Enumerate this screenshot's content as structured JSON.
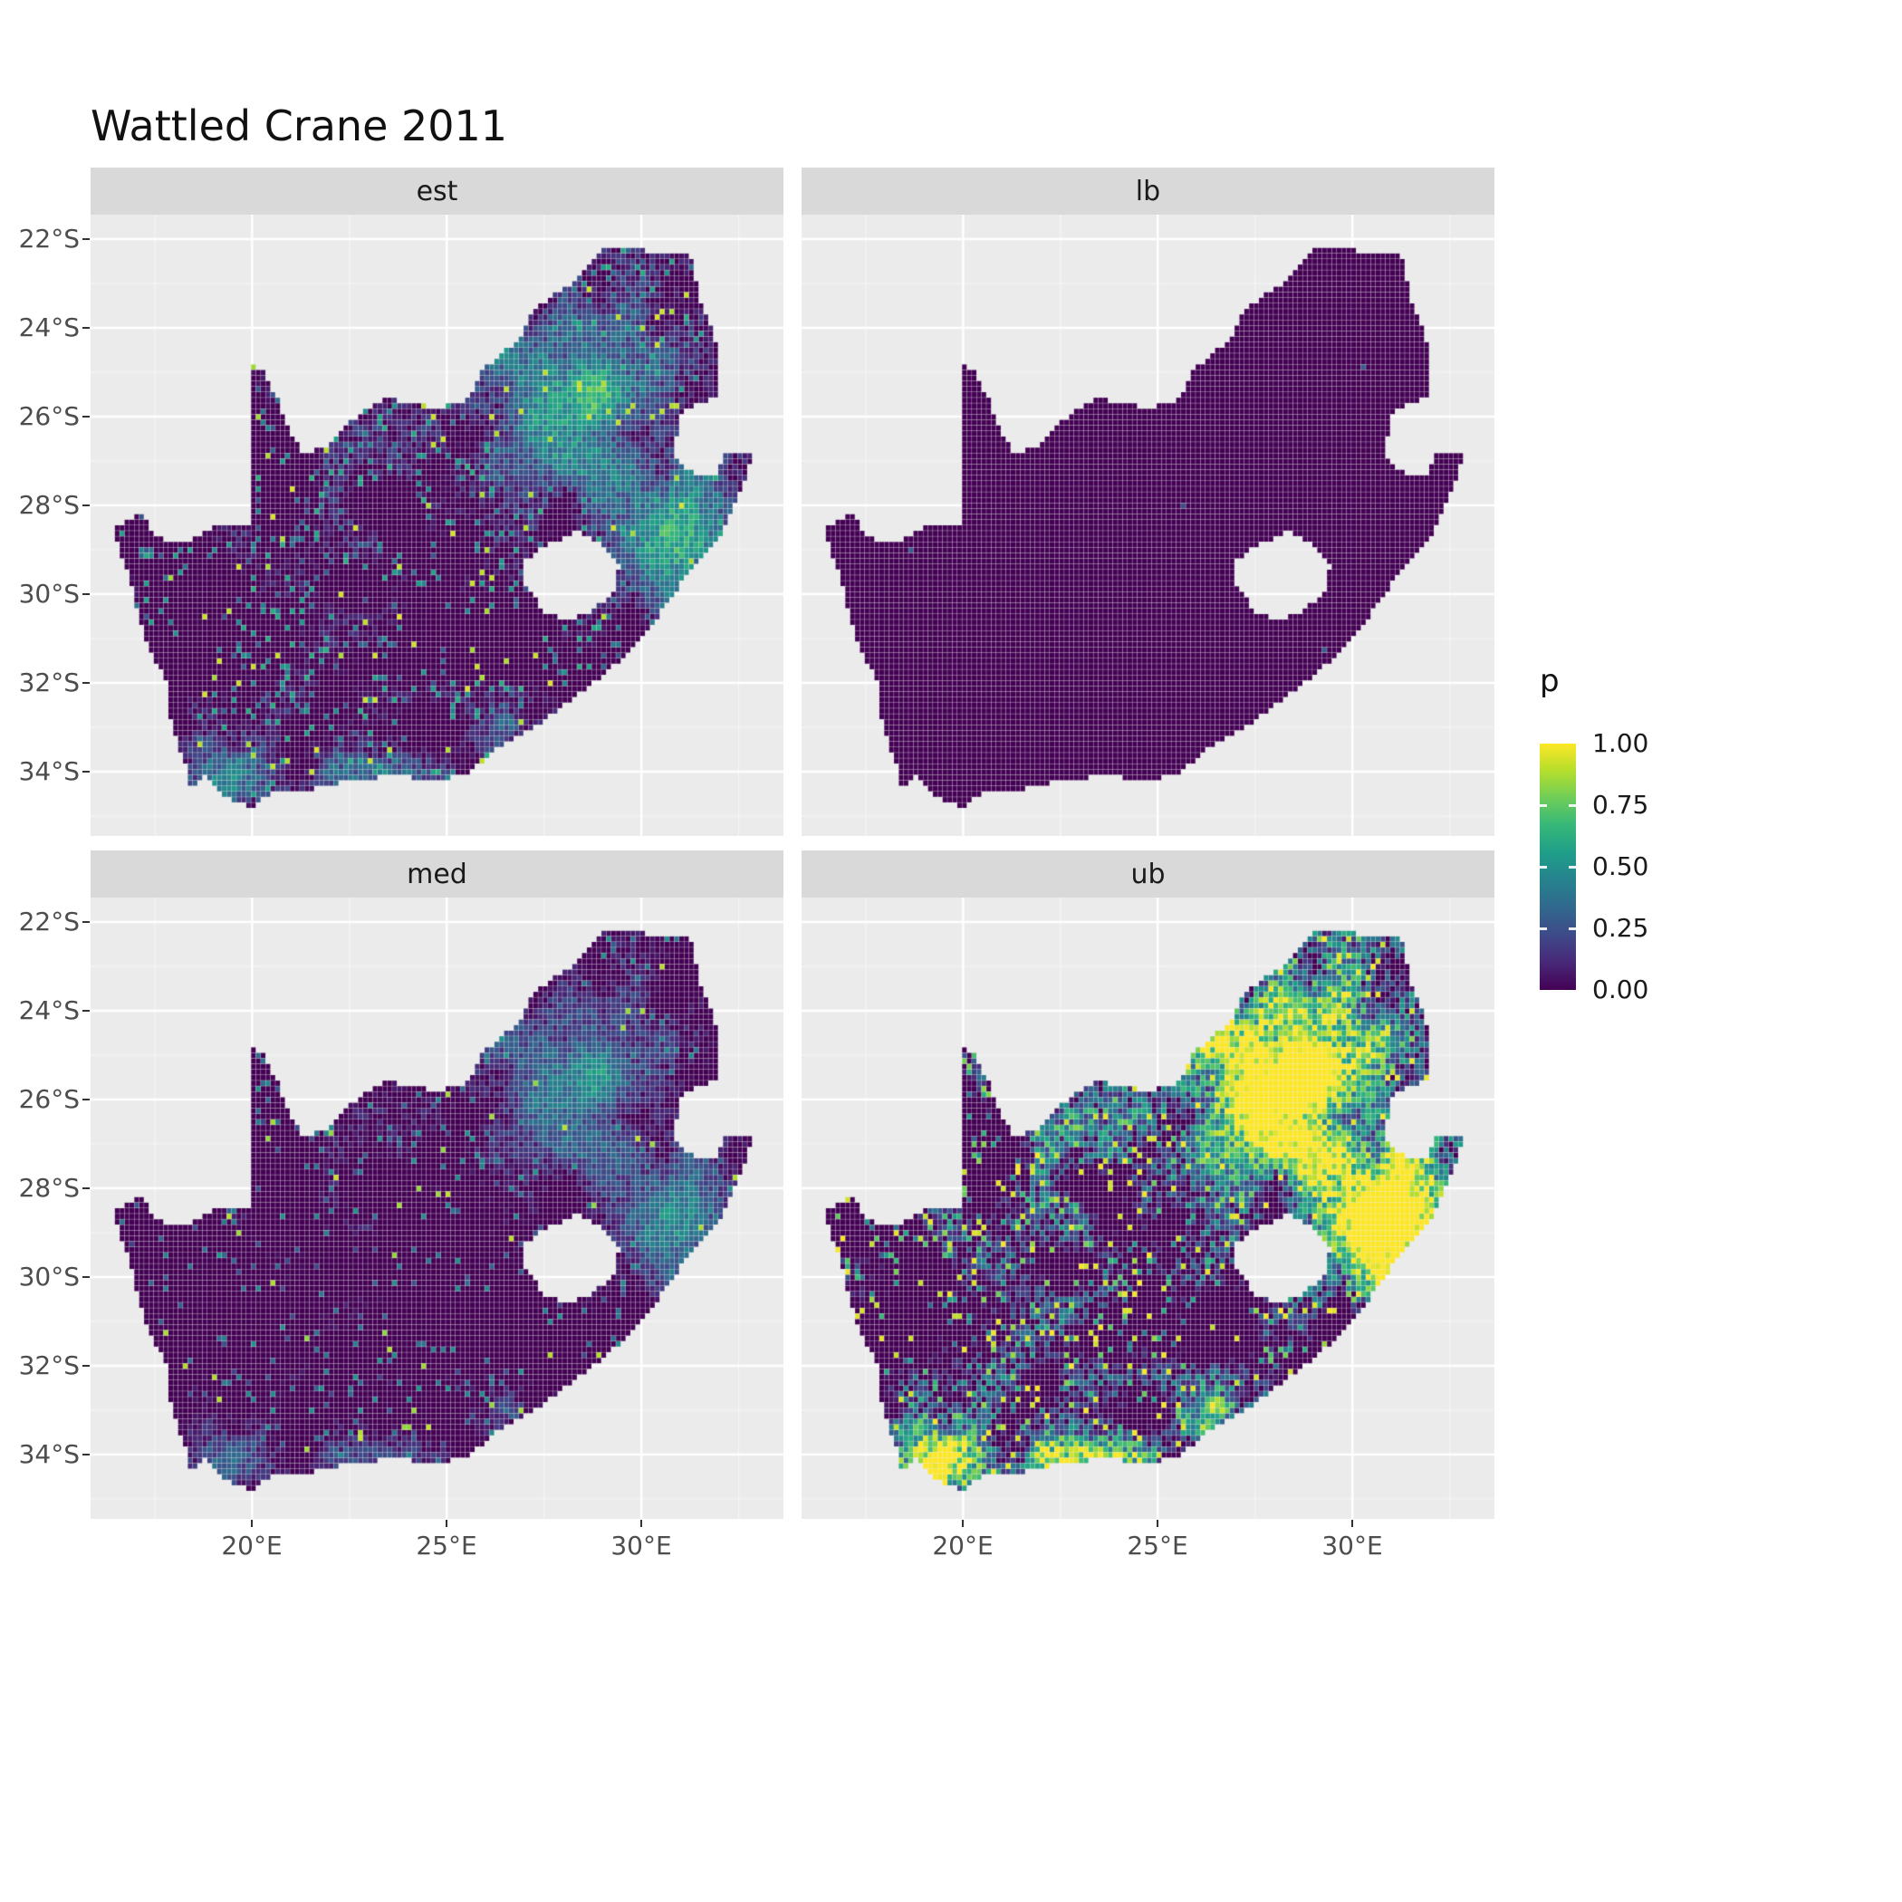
{
  "title": "Wattled Crane 2011",
  "legend": {
    "title": "p",
    "entries": [
      {
        "label": "1.00",
        "value": 1.0
      },
      {
        "label": "0.75",
        "value": 0.75
      },
      {
        "label": "0.50",
        "value": 0.5
      },
      {
        "label": "0.25",
        "value": 0.25
      },
      {
        "label": "0.00",
        "value": 0.0
      }
    ]
  },
  "axes": {
    "y_ticks": [
      {
        "label": "22°S",
        "lat": -22
      },
      {
        "label": "24°S",
        "lat": -24
      },
      {
        "label": "26°S",
        "lat": -26
      },
      {
        "label": "28°S",
        "lat": -28
      },
      {
        "label": "30°S",
        "lat": -30
      },
      {
        "label": "32°S",
        "lat": -32
      },
      {
        "label": "34°S",
        "lat": -34
      }
    ],
    "x_ticks": [
      {
        "label": "20°E",
        "lon": 20
      },
      {
        "label": "25°E",
        "lon": 25
      },
      {
        "label": "30°E",
        "lon": 30
      }
    ]
  },
  "chart_data": {
    "type": "heatmap",
    "title": "Wattled Crane 2011",
    "subtitle": "",
    "xlabel": "",
    "ylabel": "",
    "legend_title": "p",
    "legend_position": "right",
    "legend_breaks": [
      0.0,
      0.25,
      0.5,
      0.75,
      1.0
    ],
    "value_range": [
      0,
      1
    ],
    "grid": true,
    "facets": [
      {
        "label": "est",
        "sub": 0.5,
        "mul": 1.4,
        "cap": 1.0,
        "spike_p": 0.012,
        "spike_v": 0.95,
        "dot_p": 0.1,
        "dot_v": 0.4
      },
      {
        "label": "lb",
        "sub": 1.2,
        "mul": 1.0,
        "cap": 0.3,
        "spike_p": 0.0,
        "spike_v": 0.3,
        "dot_p": 0.0008,
        "dot_v": 0.3
      },
      {
        "label": "med",
        "sub": 0.56,
        "mul": 1.2,
        "cap": 0.95,
        "spike_p": 0.007,
        "spike_v": 0.92,
        "dot_p": 0.06,
        "dot_v": 0.34
      },
      {
        "label": "ub",
        "sub": 0.46,
        "mul": 3.2,
        "cap": 1.0,
        "spike_p": 0.04,
        "spike_v": 1.0,
        "dot_p": 0.12,
        "dot_v": 0.55
      }
    ],
    "projection": {
      "lon_range": [
        15.85,
        33.65
      ],
      "lat_range": [
        -35.45,
        -21.45
      ],
      "cell_deg": 0.125
    },
    "colormap": {
      "name": "viridis",
      "domain": [
        0,
        1
      ],
      "stops": [
        "#440154",
        "#482878",
        "#3E4A89",
        "#31688E",
        "#26828E",
        "#1F9E89",
        "#35B779",
        "#6DCD59",
        "#B4DE2C",
        "#FDE725"
      ]
    },
    "colors": {
      "panel_bg": "#EBEBEB",
      "strip_bg": "#D9D9D9",
      "grid_major": "#FFFFFF",
      "axis_text": "#4D4D4D",
      "strip_text": "#1A1A1A",
      "title_text": "#111111",
      "tick_mark": "#333333"
    },
    "south_africa_outline": [
      [
        16.45,
        -28.58
      ],
      [
        16.8,
        -28.3
      ],
      [
        17.25,
        -28.22
      ],
      [
        17.45,
        -28.7
      ],
      [
        18.2,
        -28.87
      ],
      [
        19.0,
        -28.5
      ],
      [
        19.6,
        -28.5
      ],
      [
        19.98,
        -28.42
      ],
      [
        19.98,
        -24.77
      ],
      [
        20.35,
        -25.05
      ],
      [
        20.65,
        -25.6
      ],
      [
        20.85,
        -26.15
      ],
      [
        21.3,
        -26.85
      ],
      [
        21.9,
        -26.67
      ],
      [
        22.4,
        -26.2
      ],
      [
        22.9,
        -25.85
      ],
      [
        23.5,
        -25.6
      ],
      [
        24.2,
        -25.75
      ],
      [
        24.9,
        -25.78
      ],
      [
        25.55,
        -25.6
      ],
      [
        25.9,
        -24.95
      ],
      [
        26.35,
        -24.63
      ],
      [
        26.85,
        -24.25
      ],
      [
        27.2,
        -23.65
      ],
      [
        27.85,
        -23.2
      ],
      [
        28.35,
        -22.95
      ],
      [
        29.0,
        -22.2
      ],
      [
        29.7,
        -22.15
      ],
      [
        30.3,
        -22.3
      ],
      [
        31.3,
        -22.4
      ],
      [
        31.55,
        -23.5
      ],
      [
        31.85,
        -24.0
      ],
      [
        31.98,
        -24.55
      ],
      [
        32.0,
        -25.1
      ],
      [
        31.97,
        -25.55
      ],
      [
        31.4,
        -25.72
      ],
      [
        31.0,
        -26.0
      ],
      [
        30.85,
        -26.8
      ],
      [
        31.1,
        -27.2
      ],
      [
        31.6,
        -27.32
      ],
      [
        31.97,
        -27.32
      ],
      [
        32.13,
        -26.86
      ],
      [
        32.89,
        -26.86
      ],
      [
        32.6,
        -27.6
      ],
      [
        32.1,
        -28.6
      ],
      [
        31.3,
        -29.4
      ],
      [
        30.7,
        -30.2
      ],
      [
        30.0,
        -31.0
      ],
      [
        29.2,
        -31.7
      ],
      [
        28.3,
        -32.3
      ],
      [
        27.4,
        -32.9
      ],
      [
        26.4,
        -33.4
      ],
      [
        25.6,
        -34.0
      ],
      [
        24.8,
        -34.2
      ],
      [
        23.6,
        -34.1
      ],
      [
        22.6,
        -34.2
      ],
      [
        21.6,
        -34.4
      ],
      [
        20.5,
        -34.5
      ],
      [
        20.0,
        -34.82
      ],
      [
        19.3,
        -34.6
      ],
      [
        18.85,
        -34.1
      ],
      [
        18.42,
        -34.33
      ],
      [
        18.3,
        -33.9
      ],
      [
        17.9,
        -32.8
      ],
      [
        17.8,
        -32.0
      ],
      [
        17.25,
        -31.0
      ],
      [
        16.9,
        -29.8
      ],
      [
        16.6,
        -29.0
      ]
    ],
    "lesotho_hole": [
      [
        26.95,
        -29.3
      ],
      [
        27.55,
        -28.9
      ],
      [
        28.35,
        -28.6
      ],
      [
        29.05,
        -28.9
      ],
      [
        29.45,
        -29.35
      ],
      [
        29.3,
        -29.95
      ],
      [
        28.75,
        -30.35
      ],
      [
        28.1,
        -30.65
      ],
      [
        27.45,
        -30.35
      ],
      [
        27.0,
        -29.75
      ]
    ],
    "hotspots": [
      {
        "x": 27.8,
        "y": -25.9,
        "sx": 1.3,
        "sy": 1.1,
        "w": 0.5
      },
      {
        "x": 29.3,
        "y": -24.3,
        "sx": 2.6,
        "sy": 1.9,
        "w": 0.2
      },
      {
        "x": 30.6,
        "y": -29.5,
        "sx": 1.2,
        "sy": 1.2,
        "w": 0.26
      },
      {
        "x": 31.6,
        "y": -27.8,
        "sx": 1.0,
        "sy": 1.2,
        "w": 0.22
      },
      {
        "x": 19.6,
        "y": -34.4,
        "sx": 1.3,
        "sy": 0.7,
        "w": 0.3
      },
      {
        "x": 18.6,
        "y": -33.6,
        "sx": 0.8,
        "sy": 0.9,
        "w": 0.24
      },
      {
        "x": 23.5,
        "y": -34.2,
        "sx": 1.8,
        "sy": 0.6,
        "w": 0.2
      },
      {
        "x": 27.3,
        "y": -33.1,
        "sx": 1.3,
        "sy": 0.8,
        "w": 0.2
      },
      {
        "x": 25.0,
        "y": -29.0,
        "sx": 3.5,
        "sy": 2.5,
        "w": 0.05
      }
    ],
    "field": {
      "w_n1": 0.22,
      "w_n2": 0.34,
      "w_r": 0.2,
      "n1_scale": 2.2,
      "n2_scale": 0.85
    }
  }
}
